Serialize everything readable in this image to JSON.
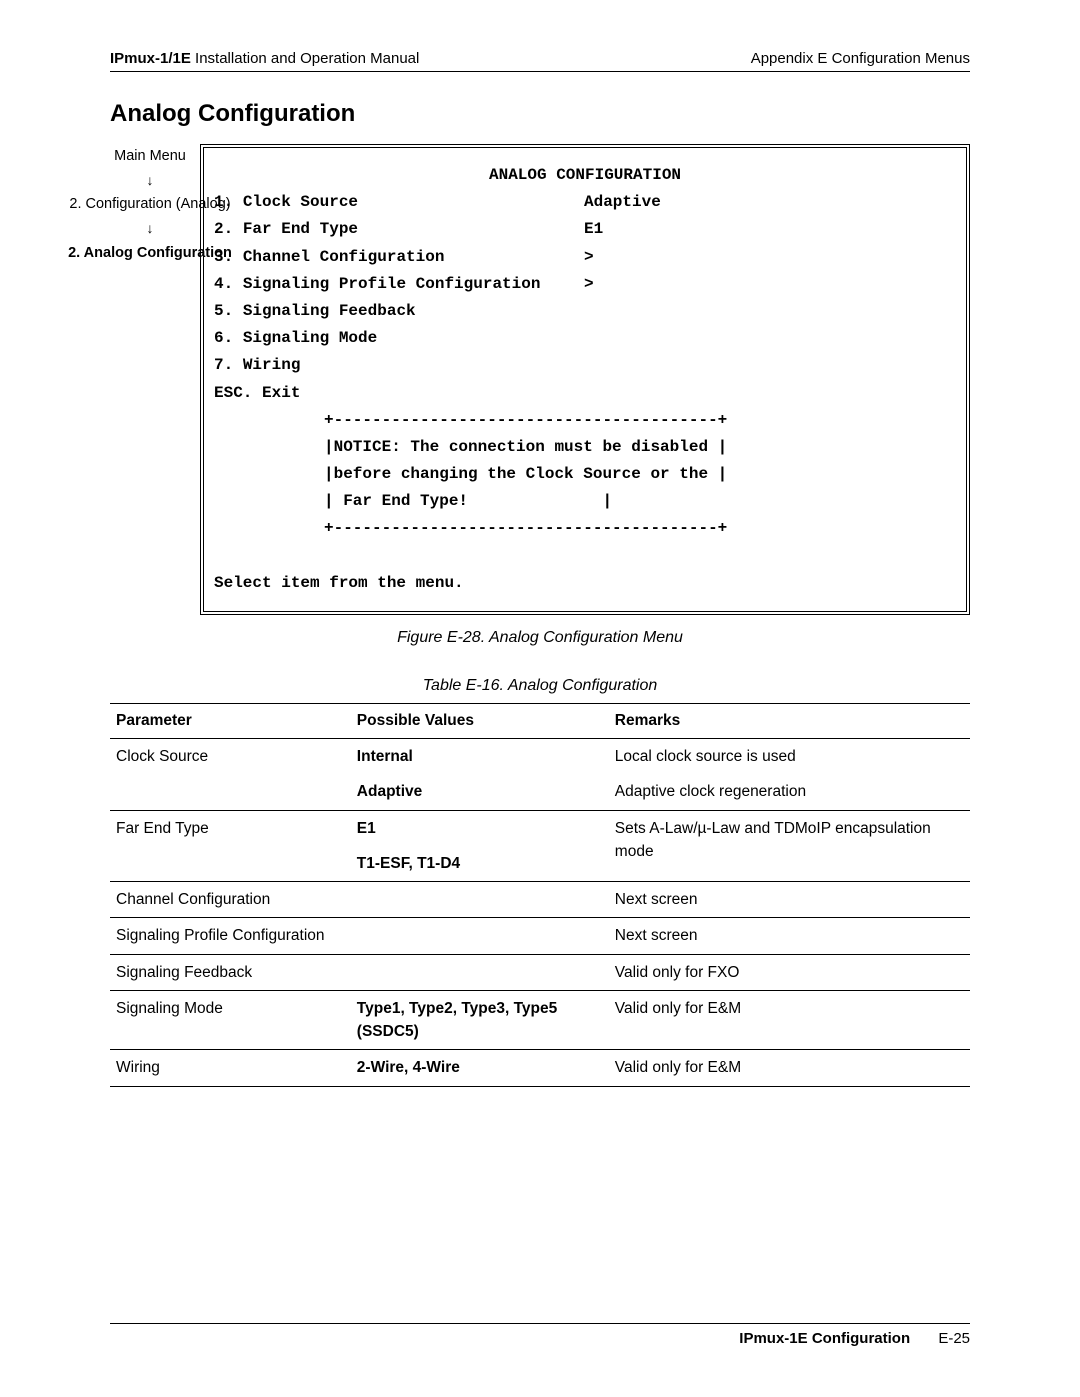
{
  "header": {
    "product": "IPmux-1/1E",
    "manual": " Installation and Operation Manual",
    "appendix": "Appendix E  Configuration Menus"
  },
  "section_title": "Analog Configuration",
  "breadcrumb": {
    "item1": "Main Menu",
    "item2": "2. Configuration (Analog)",
    "item3": "2. Analog Configuration"
  },
  "terminal": {
    "title": "ANALOG CONFIGURATION",
    "items": [
      {
        "num": "1.",
        "label": "Clock Source",
        "value": "Adaptive"
      },
      {
        "num": "2.",
        "label": "Far End Type",
        "value": "E1"
      },
      {
        "num": "3.",
        "label": "Channel Configuration",
        "value": ">"
      },
      {
        "num": "4.",
        "label": "Signaling Profile Configuration",
        "value": ">"
      },
      {
        "num": "5.",
        "label": "Signaling Feedback",
        "value": ""
      },
      {
        "num": "6.",
        "label": "Signaling Mode",
        "value": ""
      },
      {
        "num": "7.",
        "label": "Wiring",
        "value": ""
      }
    ],
    "esc": "ESC. Exit",
    "notice_border_top": "+----------------------------------------+",
    "notice_l1": "|NOTICE: The connection must be disabled |",
    "notice_l2": "|before changing the Clock Source or the |",
    "notice_l3": "| Far End Type!              |",
    "notice_border_bot": "+----------------------------------------+",
    "prompt": "Select item from the menu."
  },
  "figure_caption": "Figure E-28.  Analog Configuration Menu",
  "table_caption": "Table E-16.  Analog Configuration",
  "table": {
    "headers": {
      "p": "Parameter",
      "v": "Possible Values",
      "r": "Remarks"
    },
    "rows": [
      {
        "p": "Clock Source",
        "v": "Internal\nAdaptive",
        "r": "Local clock source is used\nAdaptive clock regeneration",
        "multi": true
      },
      {
        "p": "Far End Type",
        "v": "E1\nT1-ESF, T1-D4",
        "r": "Sets A-Law/µ-Law and TDMoIP encapsulation mode"
      },
      {
        "p": "Channel Configuration",
        "v": "",
        "r": "Next screen"
      },
      {
        "p": "Signaling Profile Configuration",
        "v": "",
        "r": "Next screen"
      },
      {
        "p": "Signaling Feedback",
        "v": "",
        "r": "Valid only for FXO"
      },
      {
        "p": "Signaling Mode",
        "v": "Type1, Type2, Type3, Type5 (SSDC5)",
        "r": "Valid only for E&M"
      },
      {
        "p": "Wiring",
        "v": "2-Wire, 4-Wire",
        "r": "Valid only for E&M"
      }
    ]
  },
  "footer": {
    "title": "IPmux-1E Configuration",
    "page": "E-25"
  }
}
